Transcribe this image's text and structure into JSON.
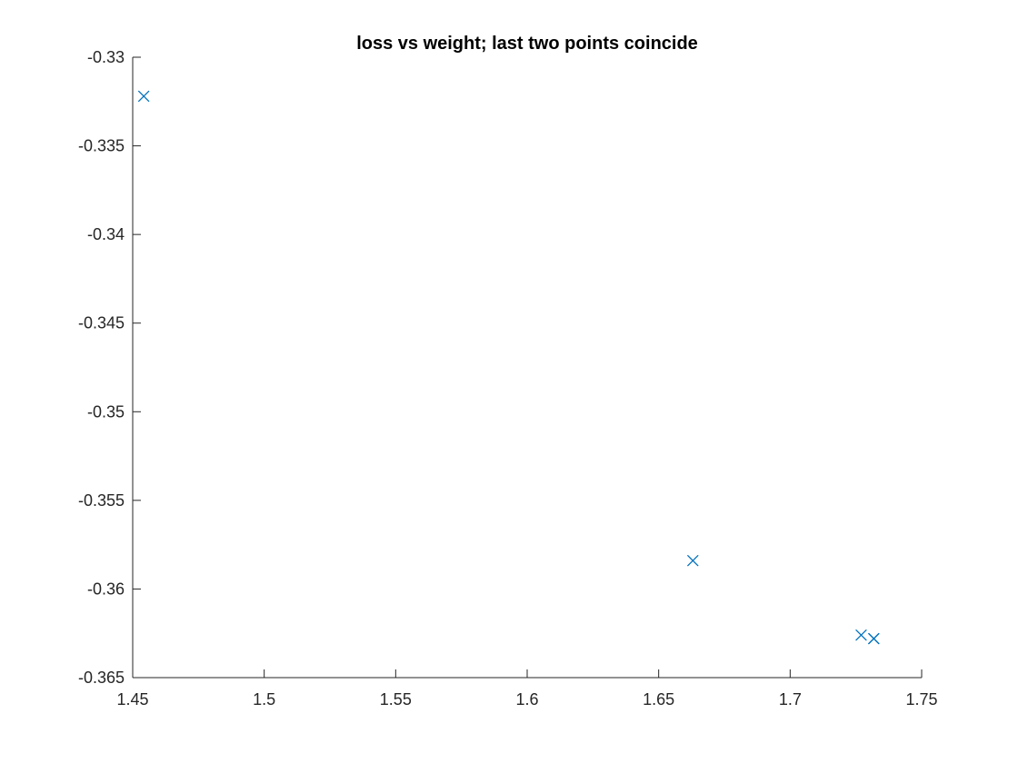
{
  "chart_data": {
    "type": "scatter",
    "title": "loss vs weight; last two points coincide",
    "xlabel": "",
    "ylabel": "",
    "xlim": [
      1.45,
      1.75
    ],
    "ylim": [
      -0.365,
      -0.33
    ],
    "xticks": [
      1.45,
      1.5,
      1.55,
      1.6,
      1.65,
      1.7,
      1.75
    ],
    "xtick_labels": [
      "1.45",
      "1.5",
      "1.55",
      "1.6",
      "1.65",
      "1.7",
      "1.75"
    ],
    "yticks": [
      -0.365,
      -0.36,
      -0.355,
      -0.35,
      -0.345,
      -0.34,
      -0.335,
      -0.33
    ],
    "ytick_labels": [
      "-0.365",
      "-0.36",
      "-0.355",
      "-0.35",
      "-0.345",
      "-0.34",
      "-0.335",
      "-0.33"
    ],
    "grid": false,
    "marker": "x",
    "series": [
      {
        "color": "#0072BD",
        "points": [
          {
            "x": 1.4542,
            "y": -0.3322
          },
          {
            "x": 1.663,
            "y": -0.3584
          },
          {
            "x": 1.727,
            "y": -0.3626
          },
          {
            "x": 1.7318,
            "y": -0.3628
          },
          {
            "x": 1.7318,
            "y": -0.3628
          }
        ]
      }
    ]
  }
}
